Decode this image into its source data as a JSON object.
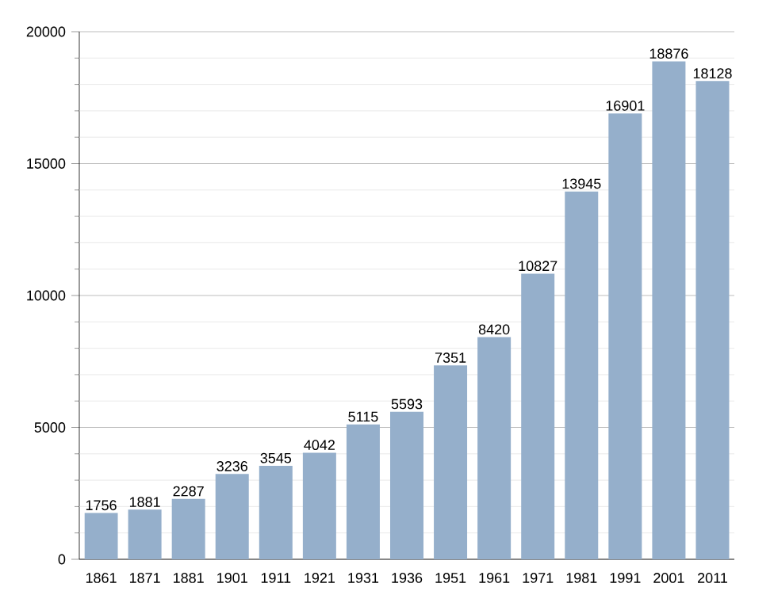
{
  "chart_data": {
    "type": "bar",
    "categories": [
      "1861",
      "1871",
      "1881",
      "1901",
      "1911",
      "1921",
      "1931",
      "1936",
      "1951",
      "1961",
      "1971",
      "1981",
      "1991",
      "2001",
      "2011"
    ],
    "values": [
      1756,
      1881,
      2287,
      3236,
      3545,
      4042,
      5115,
      5593,
      7351,
      8420,
      10827,
      13945,
      16901,
      18876,
      18128
    ],
    "color": "#95afcb",
    "data_labels": true,
    "grid": "y",
    "ylim": [
      0,
      20000
    ],
    "yticks": [
      0,
      {
        "value": 1000,
        "label": null
      },
      {
        "value": 2000,
        "label": null
      },
      {
        "value": 3000,
        "label": null
      },
      {
        "value": 4000,
        "label": null
      },
      5000,
      {
        "value": 6000,
        "label": null
      },
      {
        "value": 7000,
        "label": null
      },
      {
        "value": 8000,
        "label": null
      },
      {
        "value": 9000,
        "label": null
      },
      10000,
      {
        "value": 11000,
        "label": null
      },
      {
        "value": 12000,
        "label": null
      },
      {
        "value": 13000,
        "label": null
      },
      {
        "value": 14000,
        "label": null
      },
      15000,
      {
        "value": 16000,
        "label": null
      },
      {
        "value": 17000,
        "label": null
      },
      {
        "value": 18000,
        "label": null
      },
      {
        "value": 19000,
        "label": null
      },
      20000
    ]
  }
}
